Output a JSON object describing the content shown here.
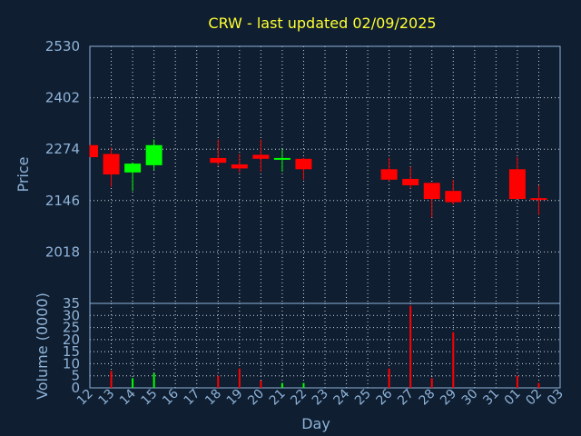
{
  "title": "CRW - last updated 02/09/2025",
  "colors": {
    "background": "#0f1e30",
    "up": "#00ff00",
    "down": "#ff0000",
    "axis": "#8fb3d9",
    "title": "#ffff33"
  },
  "chart_data": [
    {
      "type": "candlestick",
      "ylabel": "Price",
      "ylim": [
        1890,
        2530
      ],
      "yticks": [
        2018,
        2146,
        2274,
        2402,
        2530
      ],
      "grid": true,
      "x_labels": [
        "12",
        "13",
        "14",
        "15",
        "16",
        "17",
        "18",
        "19",
        "20",
        "21",
        "22",
        "23",
        "24",
        "25",
        "26",
        "27",
        "28",
        "29",
        "30",
        "31",
        "01",
        "02",
        "03"
      ],
      "candles": [
        {
          "day": "12",
          "open": 2284,
          "close": 2254,
          "high": 2284,
          "low": 2254
        },
        {
          "day": "13",
          "open": 2262,
          "close": 2211,
          "high": 2278,
          "low": 2180
        },
        {
          "day": "14",
          "open": 2216,
          "close": 2238,
          "high": 2240,
          "low": 2170
        },
        {
          "day": "15",
          "open": 2234,
          "close": 2284,
          "high": 2298,
          "low": 2222
        },
        {
          "day": "18",
          "open": 2252,
          "close": 2240,
          "high": 2298,
          "low": 2232
        },
        {
          "day": "19",
          "open": 2236,
          "close": 2226,
          "high": 2262,
          "low": 2216
        },
        {
          "day": "20",
          "open": 2260,
          "close": 2250,
          "high": 2298,
          "low": 2218
        },
        {
          "day": "21",
          "open": 2248,
          "close": 2252,
          "high": 2274,
          "low": 2218
        },
        {
          "day": "22",
          "open": 2250,
          "close": 2224,
          "high": 2252,
          "low": 2198
        },
        {
          "day": "26",
          "open": 2224,
          "close": 2198,
          "high": 2252,
          "low": 2194
        },
        {
          "day": "27",
          "open": 2200,
          "close": 2184,
          "high": 2230,
          "low": 2176
        },
        {
          "day": "28",
          "open": 2190,
          "close": 2150,
          "high": 2190,
          "low": 2104
        },
        {
          "day": "29",
          "open": 2170,
          "close": 2142,
          "high": 2198,
          "low": 2136
        },
        {
          "day": "01",
          "open": 2224,
          "close": 2150,
          "high": 2254,
          "low": 2150
        },
        {
          "day": "02",
          "open": 2152,
          "close": 2148,
          "high": 2184,
          "low": 2110
        }
      ]
    },
    {
      "type": "bar",
      "ylabel": "Volume (0000)",
      "xlabel": "Day",
      "ylim": [
        0,
        35
      ],
      "yticks": [
        0,
        5,
        10,
        15,
        20,
        25,
        30,
        35
      ],
      "grid": true,
      "categories": [
        "12",
        "13",
        "14",
        "15",
        "16",
        "17",
        "18",
        "19",
        "20",
        "21",
        "22",
        "23",
        "24",
        "25",
        "26",
        "27",
        "28",
        "29",
        "30",
        "31",
        "01",
        "02",
        "03"
      ],
      "values": [
        0,
        7,
        4,
        6,
        0,
        0,
        5,
        8,
        3,
        2,
        2,
        0,
        0,
        0,
        8,
        34,
        4,
        23,
        0,
        0,
        5,
        2,
        0
      ],
      "bar_colors": [
        "down",
        "down",
        "up",
        "up",
        "down",
        "down",
        "down",
        "down",
        "down",
        "up",
        "up",
        "down",
        "down",
        "down",
        "down",
        "down",
        "down",
        "down",
        "down",
        "down",
        "down",
        "down",
        "down"
      ]
    }
  ]
}
